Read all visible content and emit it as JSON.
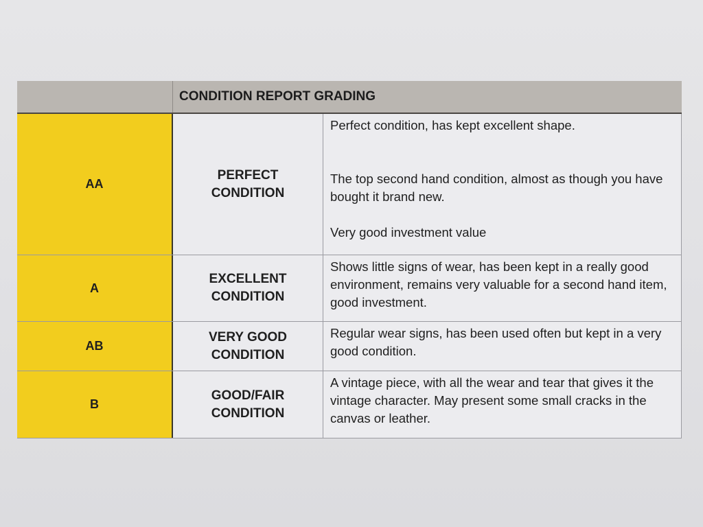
{
  "table": {
    "header": "CONDITION REPORT GRADING",
    "rows": [
      {
        "grade": "AA",
        "condition": [
          "PERFECT",
          "CONDITION"
        ],
        "description": [
          "Perfect condition, has kept excellent shape.",
          "The top second hand condition, almost as though you have bought it brand new.",
          "Very good investment value"
        ]
      },
      {
        "grade": "A",
        "condition": [
          "EXCELLENT",
          "CONDITION"
        ],
        "description": [
          "Shows little signs of wear, has been kept in a really good environment, remains very valuable for a second hand item, good investment."
        ]
      },
      {
        "grade": "AB",
        "condition": [
          "VERY GOOD",
          "CONDITION"
        ],
        "description": [
          "Regular wear signs, has been used often but kept in a very good condition."
        ]
      },
      {
        "grade": "B",
        "condition": [
          "GOOD/FAIR",
          "CONDITION"
        ],
        "description": [
          "A vintage piece, with all the wear and tear that gives it the vintage character. May present some small cracks in the canvas or leather."
        ]
      }
    ]
  },
  "colors": {
    "grade_column": "#f2cd1e",
    "header": "#bab6b1"
  }
}
